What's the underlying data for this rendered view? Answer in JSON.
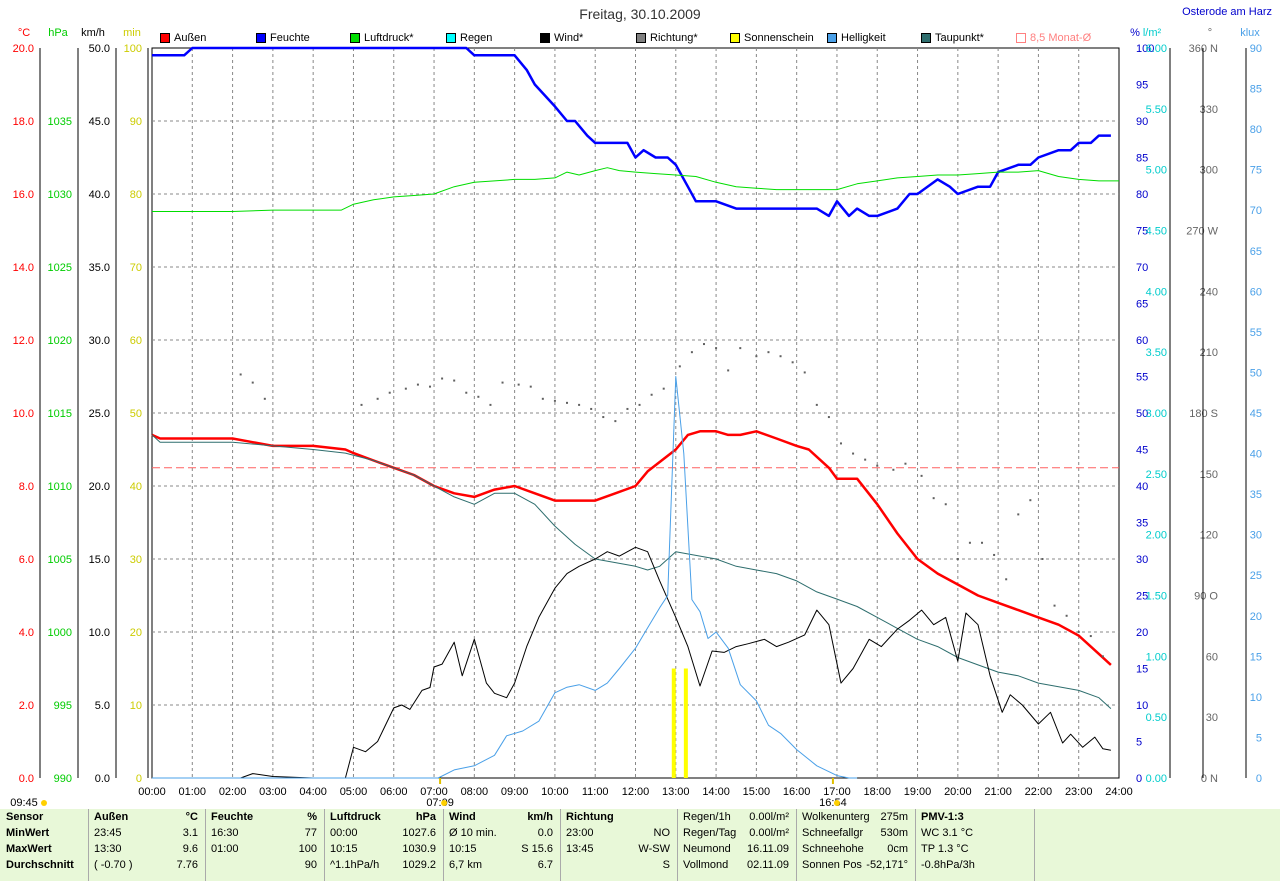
{
  "title": "Freitag, 30.10.2009",
  "station": "Osterode am Harz",
  "legend": [
    {
      "label": "Außen",
      "color": "#ff0000"
    },
    {
      "label": "Feuchte",
      "color": "#0000ff"
    },
    {
      "label": "Luftdruck*",
      "color": "#00dd00"
    },
    {
      "label": "Regen",
      "color": "#00ffff"
    },
    {
      "label": "Wind*",
      "color": "#000000"
    },
    {
      "label": "Richtung*",
      "color": "#808080"
    },
    {
      "label": "Sonnenschein",
      "color": "#ffff00"
    },
    {
      "label": "Helligkeit",
      "color": "#4aa0e8"
    },
    {
      "label": "Taupunkt*",
      "color": "#2e6e6e"
    },
    {
      "label": "8,5 Monat-Ø",
      "color": "#ff8080"
    }
  ],
  "axis_units": {
    "temp": "°C",
    "pressure": "hPa",
    "wind": "km/h",
    "sun": "min",
    "humidity": "%",
    "rain": "l/m²",
    "direction": "°",
    "light": "klux"
  },
  "chart_data": {
    "type": "line",
    "x_ticks": [
      "00:00",
      "01:00",
      "02:00",
      "03:00",
      "04:00",
      "05:00",
      "06:00",
      "07:00",
      "08:00",
      "09:00",
      "10:00",
      "11:00",
      "12:00",
      "13:00",
      "14:00",
      "15:00",
      "16:00",
      "17:00",
      "18:00",
      "19:00",
      "20:00",
      "21:00",
      "22:00",
      "23:00",
      "24:00"
    ],
    "xlim": [
      0,
      24
    ],
    "axes": {
      "temp": {
        "min": 0,
        "max": 20,
        "ticks": [
          "0.0",
          "2.0",
          "4.0",
          "6.0",
          "8.0",
          "10.0",
          "12.0",
          "14.0",
          "16.0",
          "18.0",
          "20.0"
        ],
        "color": "#ff0000"
      },
      "pressure": {
        "min": 990,
        "max": 1040,
        "ticks": [
          "990",
          "995",
          "1000",
          "1005",
          "1010",
          "1015",
          "1020",
          "1025",
          "1030",
          "1035"
        ],
        "color": "#00cc00"
      },
      "wind": {
        "min": 0,
        "max": 50,
        "ticks": [
          "0.0",
          "5.0",
          "10.0",
          "15.0",
          "20.0",
          "25.0",
          "30.0",
          "35.0",
          "40.0",
          "45.0",
          "50.0"
        ],
        "color": "#000000"
      },
      "sun": {
        "min": 0,
        "max": 100,
        "ticks": [
          "0",
          "10",
          "20",
          "30",
          "40",
          "50",
          "60",
          "70",
          "80",
          "90",
          "100"
        ],
        "color": "#cccc00"
      },
      "humidity": {
        "min": 0,
        "max": 100,
        "ticks": [
          "0",
          "5",
          "10",
          "15",
          "20",
          "25",
          "30",
          "35",
          "40",
          "45",
          "50",
          "55",
          "60",
          "65",
          "70",
          "75",
          "80",
          "85",
          "90",
          "95",
          "100"
        ],
        "color": "#0000cc"
      },
      "rain": {
        "min": 0,
        "max": 6,
        "ticks": [
          "0.00",
          "0.50",
          "1.00",
          "1.50",
          "2.00",
          "2.50",
          "3.00",
          "3.50",
          "4.00",
          "4.50",
          "5.00",
          "5.50",
          "6.00"
        ],
        "color": "#00cccc"
      },
      "direction": {
        "min": 0,
        "max": 360,
        "ticks": [
          "0 N",
          "30",
          "60",
          "90 O",
          "120",
          "150",
          "180 S",
          "210",
          "240",
          "270 W",
          "300",
          "330",
          "360 N"
        ],
        "color": "#666666"
      },
      "light": {
        "min": 0,
        "max": 90,
        "ticks": [
          "0",
          "5",
          "10",
          "15",
          "20",
          "25",
          "30",
          "35",
          "40",
          "45",
          "50",
          "55",
          "60",
          "65",
          "70",
          "75",
          "80",
          "85",
          "90"
        ],
        "color": "#4aa0e8"
      }
    },
    "monthly_avg_temp": 8.5,
    "series": [
      {
        "name": "Außen",
        "axis": "temp",
        "color": "#ff0000",
        "width": 2.5,
        "x": [
          0,
          0.2,
          1,
          2,
          2.5,
          3,
          4,
          4.8,
          5,
          5.5,
          6,
          6.5,
          7,
          7.5,
          8,
          8.5,
          9,
          9.5,
          10,
          11,
          11.5,
          12,
          12.3,
          13,
          13.3,
          13.6,
          14,
          14.3,
          14.6,
          15,
          15.5,
          16,
          16.3,
          16.5,
          16.8,
          17,
          17.5,
          18,
          18.5,
          19,
          19.5,
          20,
          20.5,
          21,
          21.5,
          22,
          22.5,
          23,
          23.5,
          23.8
        ],
        "y": [
          9.4,
          9.3,
          9.3,
          9.3,
          9.2,
          9.1,
          9.1,
          9.0,
          8.9,
          8.7,
          8.5,
          8.3,
          8.0,
          7.8,
          7.7,
          7.9,
          8.0,
          7.8,
          7.6,
          7.6,
          7.8,
          8.0,
          8.4,
          9.0,
          9.4,
          9.5,
          9.5,
          9.4,
          9.4,
          9.5,
          9.3,
          9.1,
          9.0,
          8.8,
          8.5,
          8.2,
          8.2,
          7.5,
          6.7,
          6.0,
          5.6,
          5.3,
          5.0,
          4.8,
          4.6,
          4.4,
          4.2,
          3.9,
          3.4,
          3.1
        ]
      },
      {
        "name": "Feuchte",
        "axis": "humidity",
        "color": "#0000ff",
        "width": 2.5,
        "x": [
          0,
          0.8,
          1,
          2,
          3,
          4,
          5,
          6,
          7,
          7.8,
          8,
          9,
          9.3,
          9.5,
          10,
          10.3,
          10.5,
          10.8,
          11,
          11.8,
          12,
          12.2,
          12.5,
          12.8,
          13,
          13.3,
          13.5,
          14,
          14.5,
          15,
          15.5,
          16,
          16.5,
          16.8,
          17,
          17.3,
          17.5,
          17.8,
          18,
          18.5,
          18.8,
          19,
          19.5,
          19.8,
          20,
          20.5,
          20.8,
          21,
          21.5,
          21.8,
          22,
          22.5,
          22.8,
          23,
          23.3,
          23.5,
          23.8
        ],
        "y": [
          99,
          99,
          100,
          100,
          100,
          100,
          100,
          100,
          100,
          100,
          99,
          99,
          97,
          95,
          92,
          90,
          90,
          88,
          87,
          87,
          85,
          86,
          85,
          85,
          84,
          81,
          79,
          79,
          78,
          78,
          78,
          78,
          78,
          77,
          79,
          77,
          78,
          77,
          77,
          78,
          80,
          80,
          82,
          81,
          80,
          81,
          81,
          83,
          84,
          84,
          85,
          86,
          86,
          87,
          87,
          88,
          88
        ]
      },
      {
        "name": "Luftdruck*",
        "axis": "pressure",
        "color": "#00dd00",
        "width": 1,
        "x": [
          0,
          1,
          2,
          3,
          4,
          4.7,
          5,
          5.5,
          6,
          6.5,
          7,
          7.5,
          8,
          8.5,
          9,
          9.5,
          10,
          10.3,
          10.6,
          11,
          11.3,
          11.6,
          12,
          12.5,
          13,
          13.5,
          14,
          14.5,
          15,
          15.5,
          16,
          16.5,
          17,
          17.5,
          18,
          18.5,
          19,
          19.5,
          20,
          20.5,
          21,
          21.5,
          22,
          22.5,
          23,
          23.5,
          24
        ],
        "y": [
          1028.8,
          1028.8,
          1028.8,
          1028.9,
          1028.9,
          1028.9,
          1029.3,
          1029.6,
          1029.8,
          1029.9,
          1030.0,
          1030.5,
          1030.8,
          1030.9,
          1031.0,
          1031.0,
          1031.1,
          1031.5,
          1031.3,
          1031.6,
          1031.8,
          1031.6,
          1031.5,
          1031.4,
          1031.3,
          1031.2,
          1030.8,
          1030.5,
          1030.4,
          1030.3,
          1030.3,
          1030.3,
          1030.3,
          1030.7,
          1030.9,
          1031.1,
          1031.2,
          1031.3,
          1031.3,
          1031.4,
          1031.5,
          1031.5,
          1031.6,
          1031.2,
          1031.0,
          1030.9,
          1030.9
        ]
      },
      {
        "name": "Taupunkt*",
        "axis": "temp",
        "color": "#2e6e6e",
        "width": 1,
        "x": [
          0,
          0.2,
          1,
          2,
          3,
          4,
          4.8,
          5.5,
          6,
          6.5,
          7,
          7.5,
          8,
          8.5,
          9,
          9.5,
          10,
          10.5,
          11,
          11.5,
          12,
          12.3,
          12.6,
          13,
          13.5,
          14,
          14.5,
          15,
          15.5,
          16,
          16.5,
          17,
          17.5,
          18,
          18.5,
          19,
          19.5,
          20,
          20.5,
          21,
          21.5,
          22,
          22.5,
          23,
          23.5,
          23.8
        ],
        "y": [
          9.4,
          9.2,
          9.2,
          9.2,
          9.1,
          9.0,
          8.9,
          8.7,
          8.5,
          8.3,
          8.0,
          7.7,
          7.5,
          7.8,
          7.8,
          7.5,
          6.9,
          6.4,
          6.0,
          5.9,
          5.8,
          5.7,
          5.8,
          6.2,
          6.1,
          6.0,
          5.8,
          5.7,
          5.6,
          5.4,
          5.1,
          4.9,
          4.7,
          4.4,
          4.1,
          3.8,
          3.6,
          3.3,
          3.1,
          2.9,
          2.8,
          2.6,
          2.5,
          2.4,
          2.2,
          1.9
        ]
      },
      {
        "name": "Wind*",
        "axis": "wind",
        "color": "#000000",
        "width": 1,
        "x": [
          0,
          2.2,
          2.5,
          3,
          4,
          4.8,
          5,
          5.3,
          5.6,
          6,
          6.2,
          6.4,
          6.7,
          6.9,
          7,
          7.2,
          7.5,
          7.7,
          8,
          8.3,
          8.5,
          8.8,
          9,
          9.3,
          9.6,
          10,
          10.3,
          10.6,
          11,
          11.3,
          11.6,
          12,
          12.3,
          12.6,
          13,
          13.3,
          13.6,
          13.9,
          14.2,
          14.5,
          14.8,
          15.2,
          15.5,
          15.8,
          16.2,
          16.5,
          16.8,
          17.1,
          17.4,
          17.8,
          18.1,
          18.5,
          18.8,
          19.1,
          19.4,
          19.7,
          20,
          20.2,
          20.5,
          20.8,
          21.1,
          21.3,
          21.6,
          22,
          22.3,
          22.6,
          22.8,
          23.1,
          23.4,
          23.6,
          23.8
        ],
        "y": [
          0,
          0,
          0.3,
          0.1,
          0,
          0,
          2.1,
          1.8,
          2.5,
          4.8,
          5.0,
          4.7,
          6.0,
          6.2,
          7.6,
          7.8,
          9.3,
          7.0,
          9.5,
          6.5,
          5.8,
          5.5,
          6.5,
          9.0,
          11.0,
          13.0,
          14.0,
          14.5,
          15.0,
          15.5,
          15.2,
          15.8,
          15.5,
          13.5,
          11.0,
          9.0,
          6.3,
          8.7,
          8.6,
          9.0,
          9.2,
          9.5,
          9.0,
          9.3,
          9.8,
          11.5,
          10.5,
          6.5,
          7.5,
          9.5,
          9.0,
          10.2,
          10.8,
          11.5,
          10.5,
          11.0,
          8.0,
          11.3,
          10.5,
          7.0,
          4.5,
          5.7,
          5.0,
          3.7,
          4.5,
          2.4,
          3.0,
          2.1,
          2.8,
          2.0,
          1.9
        ]
      },
      {
        "name": "Helligkeit",
        "axis": "light",
        "color": "#4aa0e8",
        "width": 1,
        "x": [
          0,
          7.1,
          7.5,
          8,
          8.5,
          8.8,
          9.2,
          9.6,
          10,
          10.3,
          10.6,
          11,
          11.3,
          11.6,
          12,
          12.3,
          12.6,
          12.8,
          13,
          13.2,
          13.4,
          13.6,
          13.8,
          14,
          14.3,
          14.6,
          15,
          15.3,
          15.6,
          16,
          16.5,
          17,
          17.3,
          17.5
        ],
        "y": [
          0,
          0,
          1,
          1.5,
          2.8,
          5.2,
          5.8,
          7.0,
          10.5,
          11.2,
          11.5,
          10.8,
          11.7,
          13.5,
          16.0,
          18.5,
          21.0,
          22.5,
          49.5,
          40.0,
          22.0,
          20.5,
          17.2,
          18.0,
          16.0,
          11.5,
          9.5,
          6.5,
          5.5,
          3.5,
          1.5,
          0.3,
          0,
          0
        ]
      },
      {
        "name": "Sonnenschein",
        "axis": "sun",
        "type": "bar",
        "color": "#ffff00",
        "width": 4,
        "x": [
          12.95,
          13.25
        ],
        "y": [
          15,
          15
        ]
      },
      {
        "name": "Richtung*",
        "axis": "direction",
        "type": "dots",
        "color": "#606060",
        "x": [
          2.2,
          2.5,
          2.8,
          5.2,
          5.6,
          5.9,
          6.3,
          6.6,
          6.9,
          7.2,
          7.5,
          7.8,
          8.1,
          8.4,
          8.7,
          9.1,
          9.4,
          9.7,
          10,
          10.3,
          10.6,
          10.9,
          11.2,
          11.5,
          11.8,
          12.1,
          12.4,
          12.7,
          13.1,
          13.4,
          13.7,
          14,
          14.3,
          14.6,
          15,
          15.3,
          15.6,
          15.9,
          16.2,
          16.5,
          16.8,
          17.1,
          17.4,
          17.7,
          18,
          18.4,
          18.7,
          19.1,
          19.4,
          19.7,
          20,
          20.3,
          20.6,
          20.9,
          21.2,
          21.5,
          21.8,
          22.1,
          22.4,
          22.7,
          23,
          23.3,
          23.6
        ],
        "y": [
          199,
          195,
          187,
          184,
          187,
          190,
          192,
          194,
          193,
          197,
          196,
          190,
          188,
          184,
          195,
          194,
          193,
          187,
          186,
          185,
          184,
          182,
          178,
          176,
          182,
          184,
          189,
          192,
          203,
          210,
          214,
          212,
          201,
          212,
          208,
          210,
          208,
          205,
          200,
          184,
          178,
          165,
          160,
          157,
          154,
          152,
          155,
          149,
          138,
          135,
          108,
          116,
          116,
          110,
          98,
          130,
          137,
          108,
          85,
          80,
          72,
          70,
          60
        ]
      }
    ],
    "sun_marks": [
      {
        "label": "09:45",
        "x": -3.3
      },
      {
        "label": "07:09",
        "x": 7.15
      },
      {
        "label": "16:54",
        "x": 16.9
      }
    ]
  },
  "footer": {
    "sensor": {
      "h": "Sensor",
      "rows": [
        "MinWert",
        "MaxWert",
        "Durchschnitt"
      ]
    },
    "aussen": {
      "h": "Außen",
      "u": "°C",
      "rows": [
        [
          "23:45",
          "3.1"
        ],
        [
          "13:30",
          "9.6"
        ],
        [
          "( -0.70 )",
          "7.76"
        ]
      ]
    },
    "feuchte": {
      "h": "Feuchte",
      "u": "%",
      "rows": [
        [
          "16:30",
          "77"
        ],
        [
          "01:00",
          "100"
        ],
        [
          "",
          "90"
        ]
      ]
    },
    "luftdruck": {
      "h": "Luftdruck",
      "u": "hPa",
      "rows": [
        [
          "00:00",
          "1027.6"
        ],
        [
          "10:15",
          "1030.9"
        ],
        [
          "^1.1hPa/h",
          "1029.2"
        ]
      ]
    },
    "wind": {
      "h": "Wind",
      "u": "km/h",
      "rows": [
        [
          "Ø 10 min.",
          "0.0"
        ],
        [
          "10:15",
          "S 15.6"
        ],
        [
          "6,7 km",
          "6.7"
        ]
      ]
    },
    "richtung": {
      "h": "Richtung",
      "rows": [
        [
          "23:00",
          "NO"
        ],
        [
          "13:45",
          "W-SW"
        ],
        [
          "",
          "S"
        ]
      ]
    },
    "regen": {
      "rows": [
        [
          "Regen/1h",
          "0.00l/m²"
        ],
        [
          "Regen/Tag",
          "0.00l/m²"
        ],
        [
          "Neumond",
          "16.11.09"
        ],
        [
          "Vollmond",
          "02.11.09"
        ]
      ]
    },
    "wolken": {
      "rows": [
        [
          "Wolkenunterg",
          "275m"
        ],
        [
          "Schneefallgr",
          "530m"
        ],
        [
          "Schneehohe",
          "0cm"
        ],
        [
          "Sonnen Pos",
          "-52,171°"
        ]
      ]
    },
    "pmv": {
      "rows": [
        "PMV-1:3",
        "WC 3.1 °C",
        "TP 1.3 °C",
        "-0.8hPa/3h"
      ]
    }
  }
}
